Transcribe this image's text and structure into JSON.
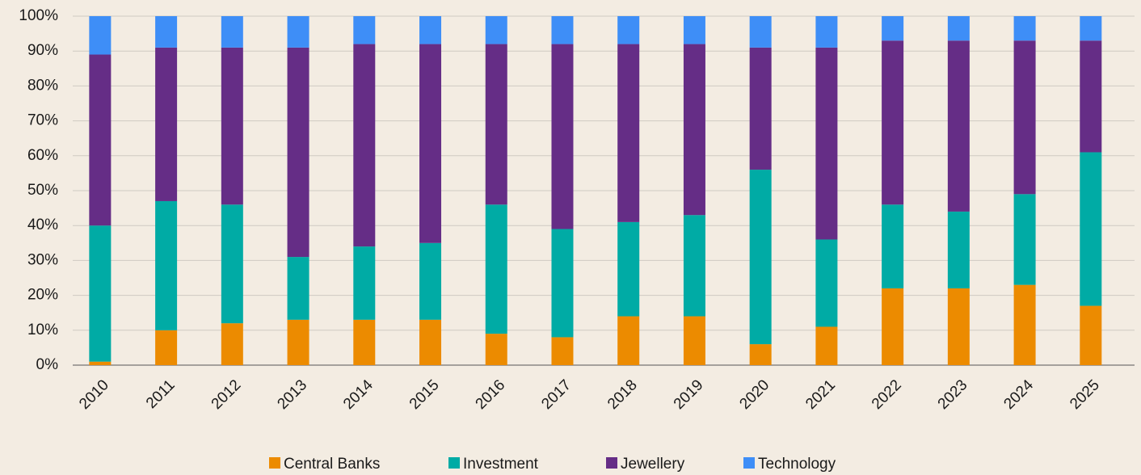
{
  "chart_data": {
    "type": "stacked_bar",
    "categories": [
      "2010",
      "2011",
      "2012",
      "2013",
      "2014",
      "2015",
      "2016",
      "2017",
      "2018",
      "2019",
      "2020",
      "2021",
      "2022",
      "2023",
      "2024",
      "2025"
    ],
    "series": [
      {
        "name": "Central Banks",
        "color": "#ec8b00",
        "values": [
          1,
          10,
          12,
          13,
          13,
          13,
          9,
          8,
          14,
          14,
          6,
          11,
          22,
          22,
          23,
          17
        ]
      },
      {
        "name": "Investment",
        "color": "#00aba5",
        "values": [
          39,
          37,
          34,
          18,
          21,
          22,
          37,
          31,
          27,
          29,
          50,
          25,
          24,
          22,
          26,
          44
        ]
      },
      {
        "name": "Jewellery",
        "color": "#652d86",
        "values": [
          49,
          44,
          45,
          60,
          58,
          57,
          46,
          53,
          51,
          49,
          35,
          55,
          47,
          49,
          44,
          32
        ]
      },
      {
        "name": "Technology",
        "color": "#3e8ef7",
        "values": [
          11,
          9,
          9,
          9,
          8,
          8,
          8,
          8,
          8,
          8,
          9,
          9,
          7,
          7,
          7,
          7
        ]
      }
    ],
    "ylim": [
      0,
      100
    ],
    "yticks": [
      {
        "value": 0,
        "label": "0%"
      },
      {
        "value": 10,
        "label": "10%"
      },
      {
        "value": 20,
        "label": "20%"
      },
      {
        "value": 30,
        "label": "30%"
      },
      {
        "value": 40,
        "label": "40%"
      },
      {
        "value": 50,
        "label": "50%"
      },
      {
        "value": 60,
        "label": "60%"
      },
      {
        "value": 70,
        "label": "70%"
      },
      {
        "value": 80,
        "label": "80%"
      },
      {
        "value": 90,
        "label": "90%"
      },
      {
        "value": 100,
        "label": "100%"
      }
    ],
    "grid": true,
    "legend": "bottom"
  }
}
